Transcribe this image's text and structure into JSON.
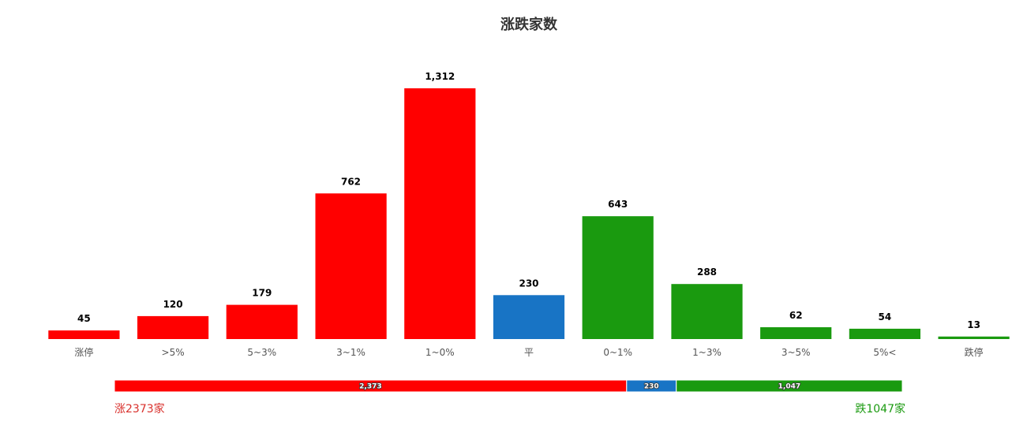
{
  "chart_data": [
    {
      "type": "bar",
      "title": "涨跌家数",
      "xlabel": "",
      "ylabel": "",
      "categories": [
        "涨停",
        ">5%",
        "5~3%",
        "3~1%",
        "1~0%",
        "平",
        "0~1%",
        "1~3%",
        "3~5%",
        "5%<",
        "跌停"
      ],
      "values": [
        45,
        120,
        179,
        762,
        1312,
        230,
        643,
        288,
        62,
        54,
        13
      ],
      "value_labels": [
        "45",
        "120",
        "179",
        "762",
        "1,312",
        "230",
        "643",
        "288",
        "62",
        "54",
        "13"
      ],
      "colors": [
        "#ff0000",
        "#ff0000",
        "#ff0000",
        "#ff0000",
        "#ff0000",
        "#1874c5",
        "#1a9a0f",
        "#1a9a0f",
        "#1a9a0f",
        "#1a9a0f",
        "#1a9a0f"
      ],
      "ylim": [
        0,
        1312
      ],
      "grid": false,
      "legend": "none"
    },
    {
      "type": "bar",
      "orientation": "horizontal-stacked",
      "categories": [
        "涨",
        "平",
        "跌"
      ],
      "values": [
        2373,
        230,
        1047
      ],
      "value_labels": [
        "2,373",
        "230",
        "1,047"
      ],
      "colors": [
        "#ff0000",
        "#1874c5",
        "#1a9a0f"
      ],
      "rise_text": "涨2373家",
      "fall_text": "跌1047家",
      "rise_color": "#d9302c",
      "fall_color": "#1a9a0f"
    }
  ]
}
